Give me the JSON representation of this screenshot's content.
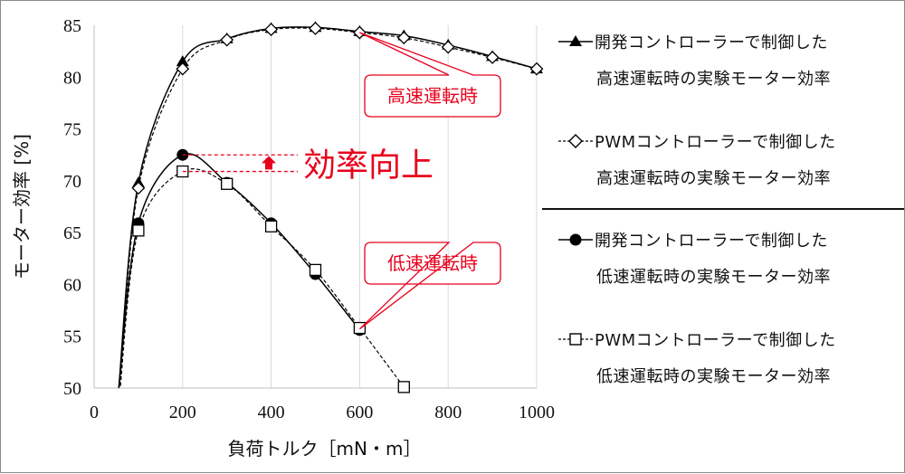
{
  "chart_data": {
    "type": "line",
    "title": "",
    "xlabel": "負荷トルク［mN・m］",
    "ylabel": "モーター効率 [%]",
    "xlim": [
      0,
      1000
    ],
    "ylim": [
      50,
      85
    ],
    "xticks": [
      "0",
      "200",
      "400",
      "600",
      "800",
      "1000"
    ],
    "yticks": [
      "50",
      "55",
      "60",
      "65",
      "70",
      "75",
      "80",
      "85"
    ],
    "grid": "vertical gridlines",
    "legend_position": "right",
    "series": [
      {
        "name": "開発コントローラーで制御した高速運転時の実験モーター効率",
        "legend_line1": "開発コントローラーで制御した",
        "legend_line2": "高速運転時の実験モーター効率",
        "marker": "triangle-filled",
        "line": "solid",
        "x": [
          100,
          200,
          300,
          400,
          500,
          600,
          700,
          800,
          900,
          1000
        ],
        "y": [
          69.8,
          81.5,
          83.7,
          84.7,
          84.8,
          84.4,
          84.0,
          83.1,
          82.0,
          80.8
        ]
      },
      {
        "name": "PWMコントローラーで制御した高速運転時の実験モーター効率",
        "legend_line1": "PWMコントローラーで制御した",
        "legend_line2": "高速運転時の実験モーター効率",
        "marker": "diamond-open",
        "line": "dashed",
        "x": [
          100,
          200,
          300,
          400,
          500,
          600,
          700,
          800,
          900,
          1000
        ],
        "y": [
          69.3,
          80.8,
          83.6,
          84.6,
          84.7,
          84.3,
          83.8,
          82.9,
          81.9,
          80.8
        ]
      },
      {
        "name": "開発コントローラーで制御した低速運転時の実験モーター効率",
        "legend_line1": "開発コントローラーで制御した",
        "legend_line2": "低速運転時の実験モーター効率",
        "marker": "circle-filled",
        "line": "solid",
        "x": [
          100,
          200,
          300,
          400,
          500,
          600
        ],
        "y": [
          65.9,
          72.5,
          69.8,
          65.9,
          61.0,
          55.6
        ]
      },
      {
        "name": "PWMコントローラーで制御した低速運転時の実験モーター効率",
        "legend_line1": "PWMコントローラーで制御した",
        "legend_line2": "低速運転時の実験モーター効率",
        "marker": "square-open",
        "line": "dashed",
        "x": [
          100,
          200,
          300,
          400,
          500,
          600,
          700
        ],
        "y": [
          65.2,
          70.9,
          69.7,
          65.6,
          61.4,
          55.8,
          50.1
        ]
      }
    ],
    "annotations": [
      {
        "text": "高速運転時",
        "color": "#e8001c",
        "callout_target_x": 600,
        "callout_target_y": 84.3
      },
      {
        "text": "低速運転時",
        "color": "#e8001c",
        "callout_target_x": 600,
        "callout_target_y": 55.7
      },
      {
        "text": "効率向上",
        "color": "#e8001c",
        "from_y": 70.9,
        "to_y": 72.5
      }
    ]
  }
}
